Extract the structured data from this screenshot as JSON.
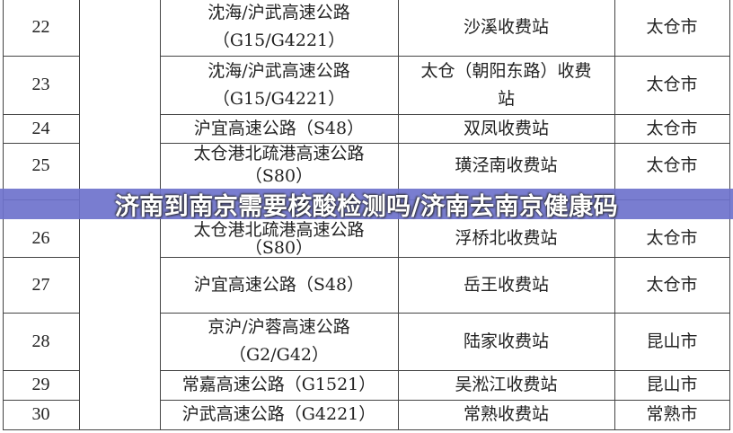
{
  "table": {
    "rows": [
      {
        "no": "22",
        "road": "沈海/沪武高速公路\n（G15/G4221）",
        "station": "沙溪收费站",
        "city": "太仓市"
      },
      {
        "no": "23",
        "road": "沈海/沪武高速公路\n（G15/G4221）",
        "station": "太仓（朝阳东路）收费\n站",
        "city": "太仓市"
      },
      {
        "no": "24",
        "road": "沪宜高速公路（S48）",
        "station": "双凤收费站",
        "city": "太仓市"
      },
      {
        "no": "25",
        "road": "太仓港北疏港高速公路\n（S80）",
        "station": "璜泾南收费站",
        "city": "太仓市"
      },
      {
        "no": "26",
        "road": "太仓港北疏港高速公路\n（S80）",
        "station": "浮桥北收费站",
        "city": "太仓市"
      },
      {
        "no": "27",
        "road": "沪宜高速公路（S48）",
        "station": "岳王收费站",
        "city": "太仓市"
      },
      {
        "no": "28",
        "road": "京沪/沪蓉高速公路\n（G2/G42）",
        "station": "陆家收费站",
        "city": "昆山市"
      },
      {
        "no": "29",
        "road": "常嘉高速公路（G1521）",
        "station": "吴淞江收费站",
        "city": "昆山市"
      },
      {
        "no": "30",
        "road": "沪武高速公路（G4221）",
        "station": "常熟收费站",
        "city": "常熟市"
      }
    ]
  },
  "banner": {
    "title": "济南到南京需要核酸检测吗/济南去南京健康码",
    "color": "#6e72cc"
  }
}
